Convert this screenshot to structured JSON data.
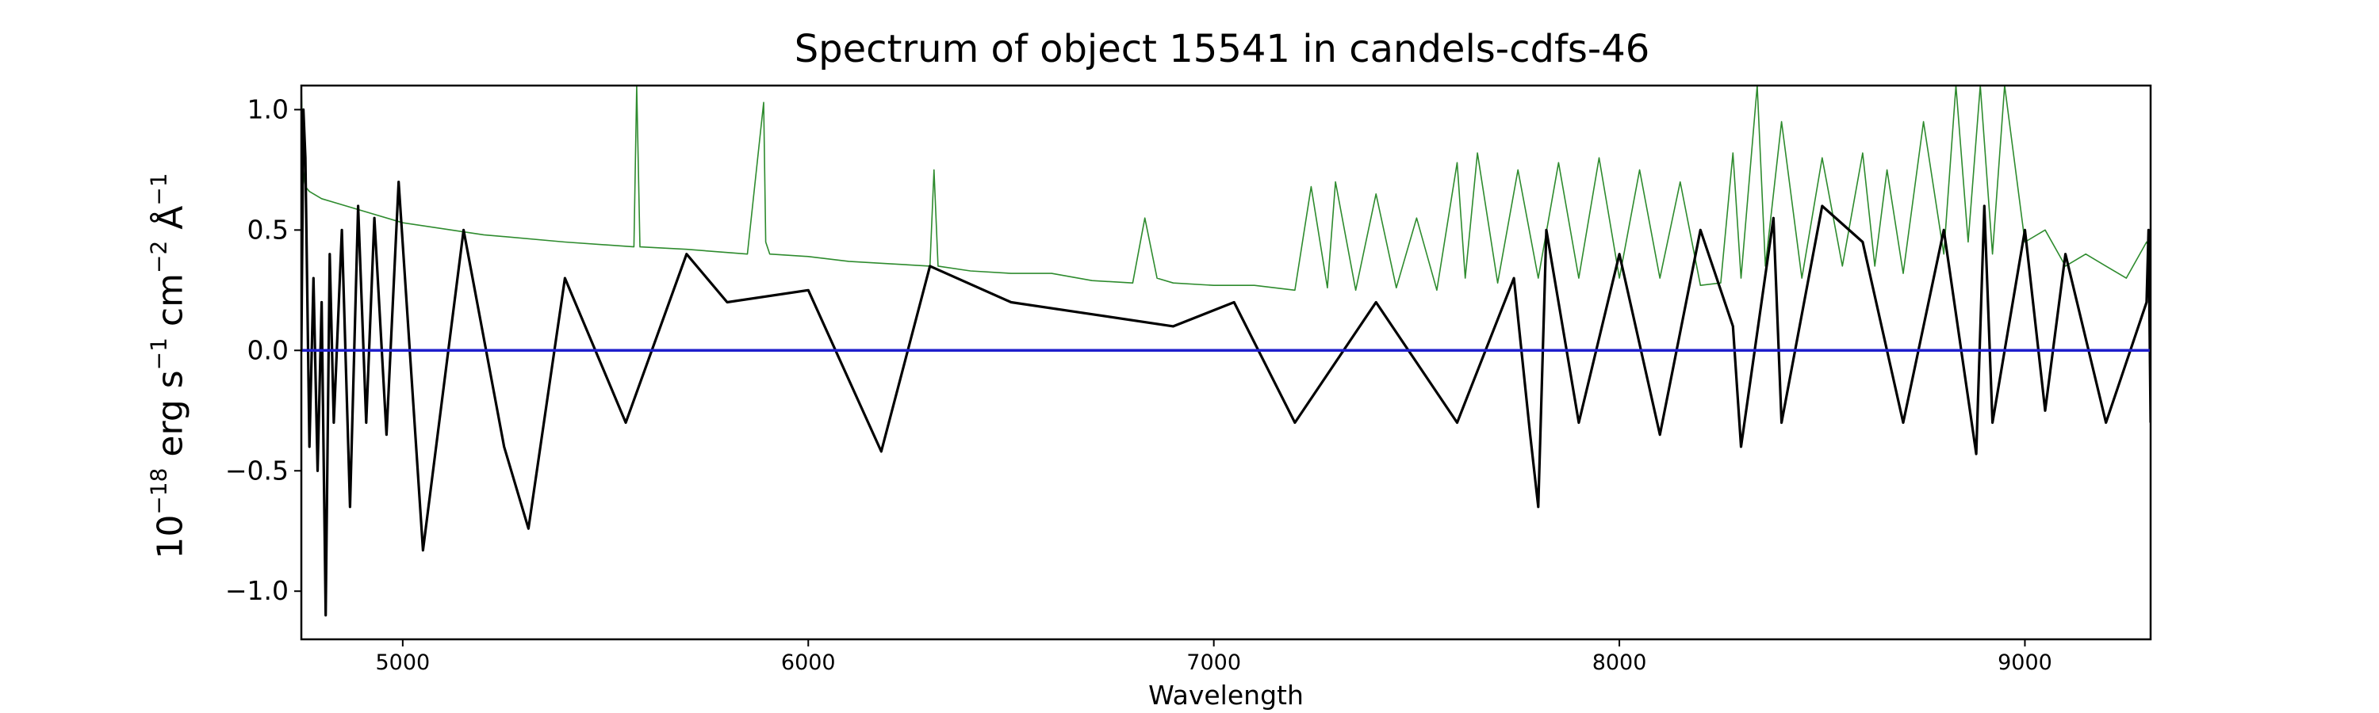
{
  "chart_data": {
    "type": "line",
    "title": "Spectrum of object 15541 in candels-cdfs-46",
    "xlabel": "Wavelength",
    "ylabel": {
      "base": "10",
      "exp": "−18",
      "unit1": " erg s",
      "exp1": "−1",
      "unit2": " cm",
      "exp2": "−2",
      "unit3": " Å",
      "exp3": "−1"
    },
    "xlim": [
      4750,
      9310
    ],
    "ylim": [
      -1.2,
      1.1
    ],
    "xticks": [
      5000,
      6000,
      7000,
      8000,
      9000
    ],
    "xtick_labels": [
      "5000",
      "6000",
      "7000",
      "8000",
      "9000"
    ],
    "yticks": [
      -1.0,
      -0.5,
      0.0,
      0.5,
      1.0
    ],
    "ytick_labels": [
      "−1.0",
      "−0.5",
      "0.0",
      "0.5",
      "1.0"
    ],
    "grid": false,
    "series": [
      {
        "role": "model",
        "color": "#2e8b2e",
        "x": [
          4750,
          4755,
          4760,
          4770,
          4800,
          4900,
          5000,
          5200,
          5400,
          5570,
          5577,
          5585,
          5700,
          5850,
          5890,
          5895,
          5905,
          6000,
          6100,
          6200,
          6300,
          6310,
          6320,
          6400,
          6500,
          6600,
          6700,
          6800,
          6830,
          6860,
          6900,
          7000,
          7100,
          7200,
          7240,
          7280,
          7300,
          7350,
          7400,
          7450,
          7500,
          7550,
          7600,
          7620,
          7650,
          7700,
          7750,
          7800,
          7850,
          7900,
          7950,
          8000,
          8050,
          8100,
          8150,
          8200,
          8250,
          8280,
          8300,
          8340,
          8360,
          8400,
          8450,
          8500,
          8550,
          8600,
          8630,
          8660,
          8700,
          8750,
          8800,
          8830,
          8860,
          8890,
          8920,
          8950,
          9000,
          9050,
          9100,
          9150,
          9200,
          9250,
          9300,
          9310
        ],
        "y": [
          1.1,
          0.75,
          0.68,
          0.66,
          0.63,
          0.58,
          0.53,
          0.48,
          0.45,
          0.43,
          1.1,
          0.43,
          0.42,
          0.4,
          1.03,
          0.45,
          0.4,
          0.39,
          0.37,
          0.36,
          0.35,
          0.75,
          0.35,
          0.33,
          0.32,
          0.32,
          0.29,
          0.28,
          0.55,
          0.3,
          0.28,
          0.27,
          0.27,
          0.25,
          0.68,
          0.26,
          0.7,
          0.25,
          0.65,
          0.26,
          0.55,
          0.25,
          0.78,
          0.3,
          0.82,
          0.28,
          0.75,
          0.3,
          0.78,
          0.3,
          0.8,
          0.3,
          0.75,
          0.3,
          0.7,
          0.27,
          0.28,
          0.82,
          0.3,
          1.1,
          0.35,
          0.95,
          0.3,
          0.8,
          0.35,
          0.82,
          0.35,
          0.75,
          0.32,
          0.95,
          0.4,
          1.1,
          0.45,
          1.1,
          0.4,
          1.1,
          0.45,
          0.5,
          0.35,
          0.4,
          0.35,
          0.3,
          0.45,
          0.42
        ]
      },
      {
        "role": "spectrum",
        "color": "#000000",
        "x": [
          4750,
          4755,
          4760,
          4770,
          4780,
          4790,
          4800,
          4810,
          4820,
          4830,
          4850,
          4870,
          4890,
          4910,
          4930,
          4960,
          4990,
          5050,
          5150,
          5250,
          5310,
          5400,
          5550,
          5700,
          5800,
          6000,
          6180,
          6300,
          6500,
          6700,
          6900,
          7050,
          7200,
          7400,
          7600,
          7740,
          7780,
          7800,
          7820,
          7900,
          8000,
          8100,
          8200,
          8280,
          8300,
          8380,
          8400,
          8500,
          8600,
          8700,
          8800,
          8880,
          8900,
          8920,
          9000,
          9050,
          9100,
          9200,
          9300,
          9305,
          9310
        ],
        "y": [
          0.0,
          1.0,
          0.8,
          -0.4,
          0.3,
          -0.5,
          0.2,
          -1.1,
          0.4,
          -0.3,
          0.5,
          -0.65,
          0.6,
          -0.3,
          0.55,
          -0.35,
          0.7,
          -0.83,
          0.5,
          -0.4,
          -0.74,
          0.3,
          -0.3,
          0.4,
          0.2,
          0.25,
          -0.42,
          0.35,
          0.2,
          0.15,
          0.1,
          0.2,
          -0.3,
          0.2,
          -0.3,
          0.3,
          -0.35,
          -0.65,
          0.5,
          -0.3,
          0.4,
          -0.35,
          0.5,
          0.1,
          -0.4,
          0.55,
          -0.3,
          0.6,
          0.45,
          -0.3,
          0.5,
          -0.43,
          0.6,
          -0.3,
          0.5,
          -0.25,
          0.4,
          -0.3,
          0.2,
          0.5,
          -0.3
        ]
      },
      {
        "role": "error",
        "color": "#1f1fcc",
        "x": [
          4750,
          9310
        ],
        "y": [
          0.0,
          0.0
        ]
      }
    ]
  }
}
